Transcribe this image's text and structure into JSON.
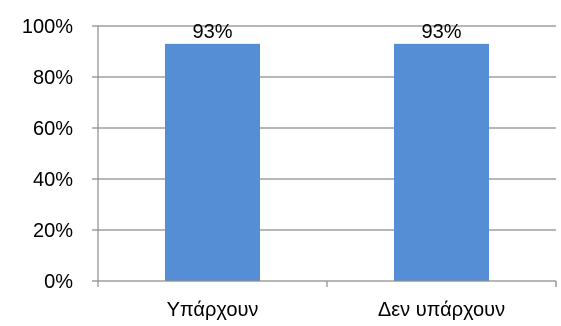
{
  "chart_data": {
    "type": "bar",
    "categories": [
      "Υπάρχουν",
      "Δεν υπάρχουν"
    ],
    "values": [
      93,
      93
    ],
    "data_labels": [
      "93%",
      "93%"
    ],
    "ylim": [
      0,
      100
    ],
    "yticks": [
      0,
      20,
      40,
      60,
      80,
      100
    ],
    "ytick_labels": [
      "0%",
      "20%",
      "40%",
      "60%",
      "80%",
      "100%"
    ],
    "title": "",
    "xlabel": "",
    "ylabel": "",
    "grid": true,
    "legend": "none",
    "bar_color": "#558ed5"
  }
}
